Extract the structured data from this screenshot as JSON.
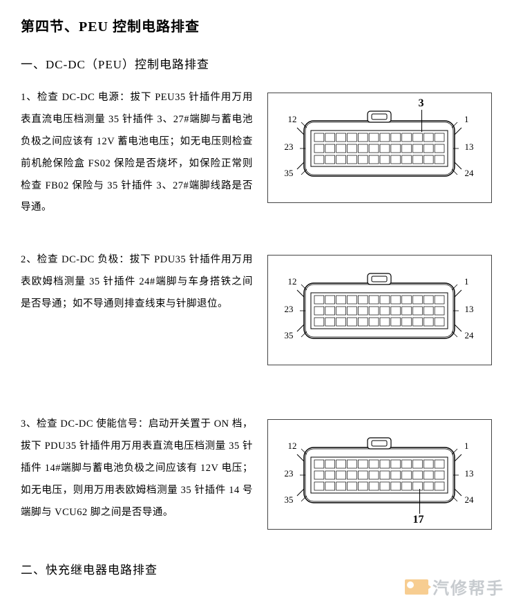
{
  "title": "第四节、PEU 控制电路排查",
  "section1": {
    "heading": "一、DC-DC（PEU）控制电路排查",
    "item1": "1、检查 DC-DC 电源：拔下 PEU35 针插件用万用表直流电压档测量 35 针插件 3、27#端脚与蓄电池负极之间应该有 12V 蓄电池电压；如无电压则检查前机舱保险盒 FS02 保险是否烧坏，如保险正常则检查 FB02 保险与 35 针插件 3、27#端脚线路是否导通。",
    "item2": "2、检查 DC-DC 负极：拔下 PDU35 针插件用万用表欧姆档测量 35 针插件 24#端脚与车身搭铁之间是否导通；如不导通则排查线束与针脚退位。",
    "item3": "3、检查 DC-DC 使能信号：启动开关置于 ON 档，拔下 PDU35 针插件用万用表直流电压档测量 35 针插件 14#端脚与蓄电池负极之间应该有 12V 电压；如无电压，则用万用表欧姆档测量 35 针插件 14 号端脚与 VCU62 脚之间是否导通。"
  },
  "section2": {
    "heading": "二、快充继电器电路排查"
  },
  "connector": {
    "pins": {
      "tl": "12",
      "tr": "1",
      "ml": "23",
      "mr": "13",
      "bl": "35",
      "br": "24"
    },
    "callout1": "3",
    "callout3": "17",
    "cols": 12,
    "body_color": "#ffffff",
    "line_color": "#000000"
  },
  "watermark": {
    "text": "汽修帮手",
    "icon_color": "#f2a638",
    "text_color": "#9aa1a8"
  }
}
